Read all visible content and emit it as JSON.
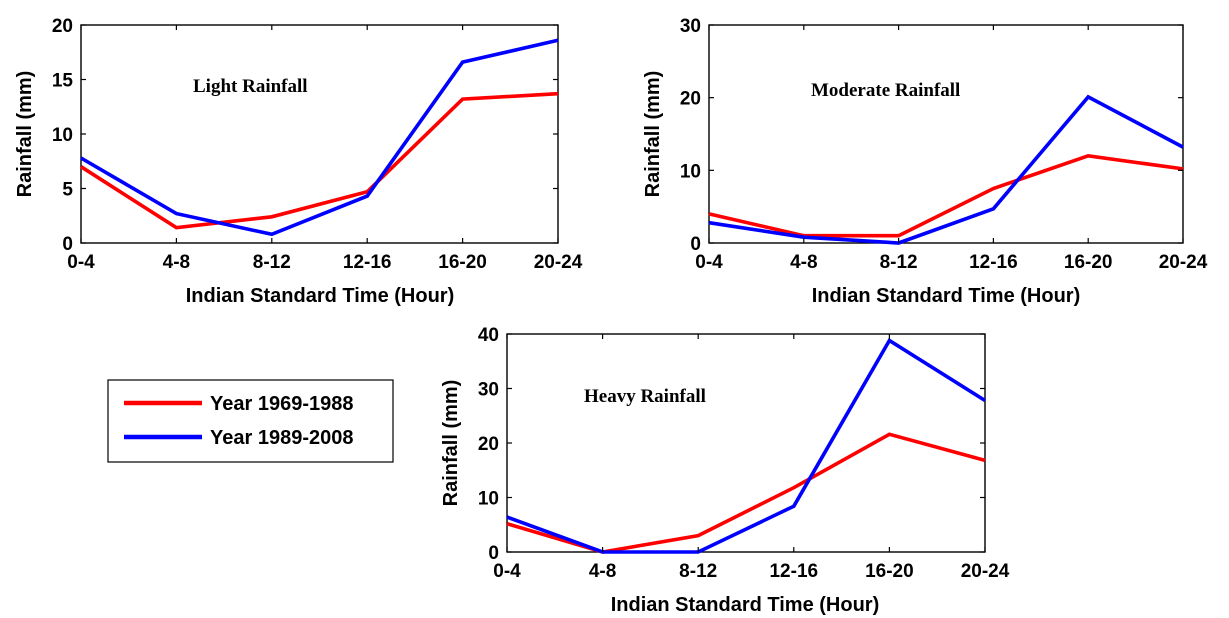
{
  "chart_data": [
    {
      "type": "line",
      "annotation": "Light Rainfall",
      "xlabel": "Indian Standard Time (Hour)",
      "ylabel": "Rainfall (mm)",
      "categories": [
        "0-4",
        "4-8",
        "8-12",
        "12-16",
        "16-20",
        "20-24"
      ],
      "ylim": [
        0,
        20
      ],
      "yticks": [
        "0",
        "5",
        "10",
        "15",
        "20"
      ],
      "grid": false,
      "series": [
        {
          "name": "Year 1969-1988",
          "color": "#ff0000",
          "values": [
            7.0,
            1.4,
            2.4,
            4.7,
            13.2,
            13.7
          ]
        },
        {
          "name": "Year 1989-2008",
          "color": "#0000ff",
          "values": [
            7.8,
            2.7,
            0.8,
            4.3,
            16.6,
            18.6
          ]
        }
      ]
    },
    {
      "type": "line",
      "annotation": "Moderate Rainfall",
      "xlabel": "Indian Standard Time (Hour)",
      "ylabel": "Rainfall (mm)",
      "categories": [
        "0-4",
        "4-8",
        "8-12",
        "12-16",
        "16-20",
        "20-24"
      ],
      "ylim": [
        0,
        30
      ],
      "yticks": [
        "0",
        "10",
        "20",
        "30"
      ],
      "grid": false,
      "series": [
        {
          "name": "Year 1969-1988",
          "color": "#ff0000",
          "values": [
            4.0,
            1.0,
            1.0,
            7.5,
            12.0,
            10.2
          ]
        },
        {
          "name": "Year 1989-2008",
          "color": "#0000ff",
          "values": [
            2.8,
            0.8,
            0.0,
            4.7,
            20.1,
            13.2
          ]
        }
      ]
    },
    {
      "type": "line",
      "annotation": "Heavy Rainfall",
      "xlabel": "Indian Standard Time (Hour)",
      "ylabel": "Rainfall (mm)",
      "categories": [
        "0-4",
        "4-8",
        "8-12",
        "12-16",
        "16-20",
        "20-24"
      ],
      "ylim": [
        0,
        40
      ],
      "yticks": [
        "0",
        "10",
        "20",
        "30",
        "40"
      ],
      "grid": false,
      "series": [
        {
          "name": "Year 1969-1988",
          "color": "#ff0000",
          "values": [
            5.2,
            0.0,
            3.0,
            11.8,
            21.6,
            16.8
          ]
        },
        {
          "name": "Year 1989-2008",
          "color": "#0000ff",
          "values": [
            6.4,
            0.0,
            0.0,
            8.4,
            38.8,
            27.8
          ]
        }
      ]
    }
  ],
  "legend": {
    "placement": "left of third chart",
    "entries": [
      {
        "label": "Year 1969-1988",
        "color": "#ff0000"
      },
      {
        "label": "Year 1989-2008",
        "color": "#0000ff"
      }
    ]
  }
}
